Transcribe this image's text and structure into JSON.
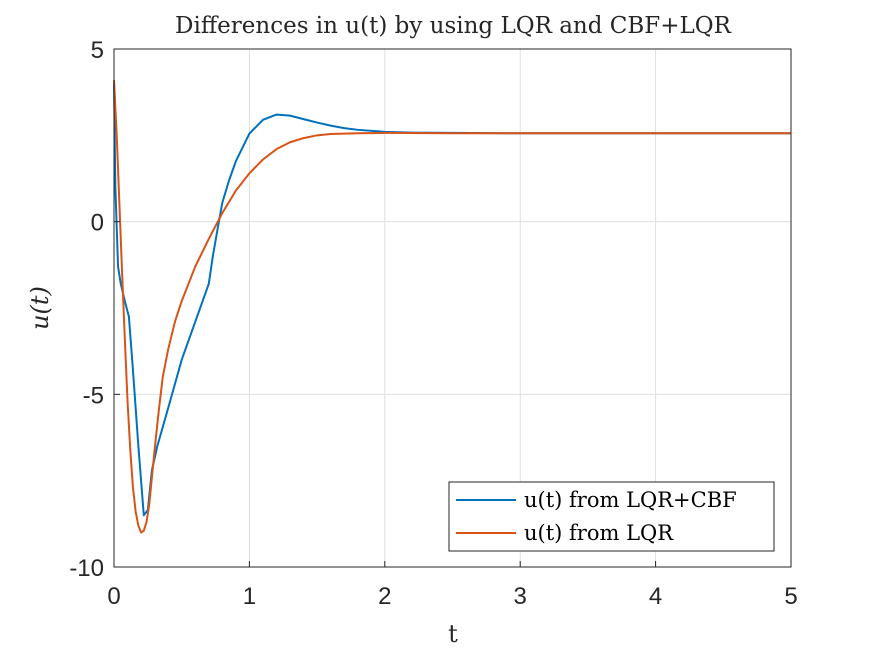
{
  "chart_data": {
    "type": "line",
    "title": "Differences in u(t) by using LQR and CBF+LQR",
    "xlabel": "t",
    "ylabel": "u(t)",
    "xlim": [
      0,
      5
    ],
    "ylim": [
      -10,
      5
    ],
    "xticks": [
      "0",
      "1",
      "2",
      "3",
      "4",
      "5"
    ],
    "yticks": [
      "5",
      "0",
      "-5",
      "-10"
    ],
    "grid": true,
    "legend_position": "bottom-right",
    "colors": {
      "LQR+CBF": "#0072BD",
      "LQR": "#D95319"
    },
    "series": [
      {
        "name": "u(t) from LQR+CBF",
        "color": "#0072BD",
        "x": [
          0,
          0.01,
          0.03,
          0.05,
          0.08,
          0.11,
          0.14,
          0.18,
          0.22,
          0.25,
          0.28,
          0.32,
          0.4,
          0.5,
          0.6,
          0.7,
          0.73,
          0.77,
          0.8,
          0.85,
          0.9,
          1.0,
          1.1,
          1.2,
          1.3,
          1.4,
          1.5,
          1.6,
          1.7,
          1.8,
          2.0,
          2.2,
          2.5,
          3.0,
          4.0,
          5.0
        ],
        "y": [
          4.0,
          1.0,
          -1.3,
          -1.8,
          -2.3,
          -2.75,
          -4.3,
          -6.5,
          -8.5,
          -8.35,
          -7.2,
          -6.5,
          -5.4,
          -4.0,
          -2.9,
          -1.8,
          -1.0,
          -0.1,
          0.55,
          1.2,
          1.75,
          2.55,
          2.95,
          3.1,
          3.07,
          2.97,
          2.87,
          2.78,
          2.71,
          2.66,
          2.6,
          2.58,
          2.57,
          2.56,
          2.56,
          2.56
        ]
      },
      {
        "name": "u(t) from LQR",
        "color": "#D95319",
        "x": [
          0,
          0.02,
          0.04,
          0.06,
          0.08,
          0.1,
          0.12,
          0.14,
          0.16,
          0.18,
          0.2,
          0.22,
          0.24,
          0.26,
          0.28,
          0.3,
          0.33,
          0.36,
          0.4,
          0.45,
          0.5,
          0.6,
          0.7,
          0.8,
          0.9,
          1.0,
          1.1,
          1.2,
          1.3,
          1.4,
          1.5,
          1.6,
          1.8,
          2.0,
          2.5,
          3.0,
          4.0,
          5.0
        ],
        "y": [
          4.1,
          2.5,
          0.5,
          -1.5,
          -3.4,
          -5.2,
          -6.6,
          -7.7,
          -8.4,
          -8.8,
          -9.0,
          -8.95,
          -8.7,
          -8.2,
          -7.4,
          -6.6,
          -5.5,
          -4.5,
          -3.7,
          -2.9,
          -2.3,
          -1.3,
          -0.5,
          0.25,
          0.9,
          1.4,
          1.8,
          2.1,
          2.3,
          2.42,
          2.5,
          2.54,
          2.56,
          2.57,
          2.56,
          2.56,
          2.56,
          2.56
        ]
      }
    ]
  }
}
